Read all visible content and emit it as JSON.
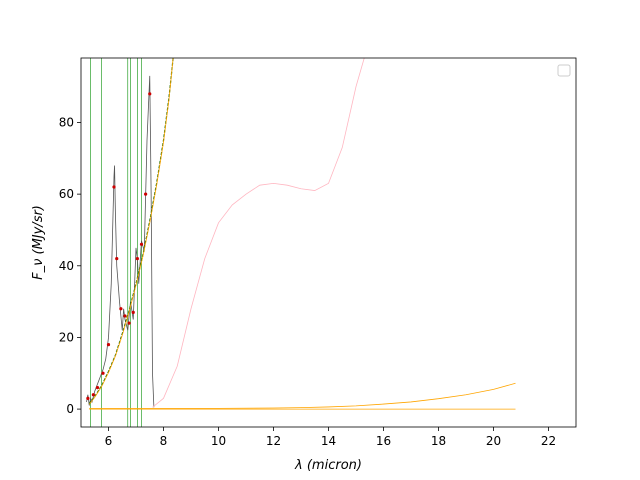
{
  "chart_data": {
    "type": "line",
    "title": "",
    "xlabel": "λ (micron)",
    "ylabel": "F_ν (MJy/sr)",
    "xlim": [
      5.0,
      23.0
    ],
    "ylim": [
      -5.0,
      98.0
    ],
    "xticks": [
      6,
      8,
      10,
      12,
      14,
      16,
      18,
      20,
      22
    ],
    "yticks": [
      0,
      20,
      40,
      60,
      80
    ],
    "grid": false,
    "legend": {
      "placement": "top-right",
      "entries": []
    },
    "vlines": [
      5.35,
      5.75,
      6.7,
      6.8,
      7.05,
      7.2
    ],
    "series": [
      {
        "role": "observed-spectrum",
        "color": "#555555",
        "x": [
          5.2,
          5.25,
          5.3,
          5.35,
          5.4,
          5.5,
          5.6,
          5.7,
          5.8,
          5.9,
          6.0,
          6.1,
          6.2,
          6.22,
          6.25,
          6.3,
          6.4,
          6.5,
          6.55,
          6.6,
          6.7,
          6.8,
          6.9,
          7.0,
          7.05,
          7.1,
          7.2,
          7.3,
          7.4,
          7.5,
          7.55,
          7.6,
          7.65
        ],
        "y": [
          2,
          4,
          1,
          3,
          2,
          5,
          7,
          9,
          11,
          14,
          20,
          35,
          65,
          68,
          55,
          40,
          30,
          22,
          28,
          25,
          22,
          30,
          25,
          45,
          42,
          35,
          47,
          44,
          75,
          93,
          60,
          10,
          0.5
        ]
      },
      {
        "role": "observed-points",
        "color": "#cc0000",
        "x": [
          5.25,
          5.45,
          5.6,
          5.8,
          6.0,
          6.2,
          6.3,
          6.45,
          6.6,
          6.75,
          6.9,
          7.05,
          7.2,
          7.35,
          7.5
        ],
        "y": [
          3,
          4,
          6,
          10,
          18,
          62,
          42,
          28,
          26,
          24,
          27,
          42,
          46,
          60,
          88
        ]
      },
      {
        "role": "continuum-fit",
        "color": "#006400",
        "x": [
          5.3,
          5.5,
          5.75,
          6.0,
          6.25,
          6.5,
          6.75,
          7.0,
          7.25,
          7.5,
          7.75,
          8.0,
          8.2,
          8.35
        ],
        "y": [
          1.5,
          3.5,
          6.5,
          10.5,
          15,
          21,
          27.5,
          35,
          43,
          52.5,
          63,
          75,
          87,
          98
        ]
      },
      {
        "role": "continuum-component",
        "color": "#ffa500",
        "x": [
          5.3,
          5.5,
          5.75,
          6.0,
          6.25,
          6.5,
          6.75,
          7.0,
          7.25,
          7.5,
          7.75,
          8.0,
          8.2,
          8.35
        ],
        "y": [
          1.3,
          3.3,
          6.3,
          10.2,
          14.8,
          20.6,
          27.2,
          34.6,
          42.6,
          52,
          62.5,
          74.5,
          86.5,
          98
        ]
      },
      {
        "role": "model-pink",
        "color": "#ffb6c1",
        "x": [
          7.6,
          8.0,
          8.5,
          9.0,
          9.5,
          10.0,
          10.5,
          11.0,
          11.5,
          12.0,
          12.5,
          13.0,
          13.5,
          14.0,
          14.5,
          15.0,
          15.3
        ],
        "y": [
          0.5,
          3,
          12,
          28,
          42,
          52,
          57,
          60,
          62.5,
          63,
          62.5,
          61.5,
          61,
          63,
          73,
          90,
          98
        ]
      },
      {
        "role": "model-orange-rising",
        "color": "#ffa500",
        "x": [
          5.3,
          8.0,
          10.0,
          12.0,
          13.0,
          14.0,
          15.0,
          16.0,
          17.0,
          18.0,
          19.0,
          20.0,
          20.8
        ],
        "y": [
          0.2,
          0.2,
          0.2,
          0.3,
          0.4,
          0.6,
          0.9,
          1.4,
          2.0,
          2.9,
          4.0,
          5.5,
          7.2
        ]
      },
      {
        "role": "model-orange-flat",
        "color": "#ffa500",
        "x": [
          5.3,
          20.8
        ],
        "y": [
          0,
          0
        ]
      }
    ]
  }
}
